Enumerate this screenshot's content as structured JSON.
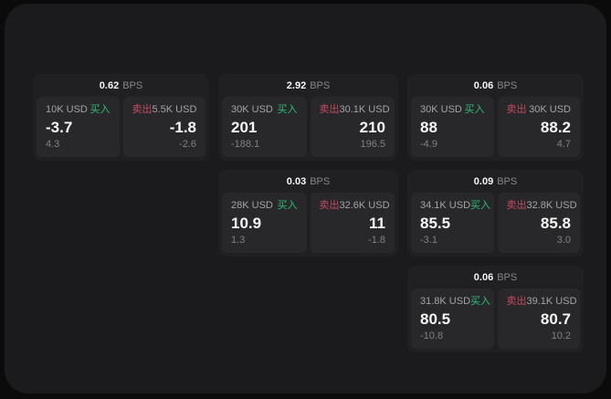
{
  "labels": {
    "buy": "买入",
    "sell": "卖出",
    "bps": "BPS"
  },
  "colors": {
    "page_bg": "#0b0b0c",
    "container_bg": "#1b1b1d",
    "card_bg": "#202022",
    "panel_bg": "#28282b",
    "buy_green": "#2ebd73",
    "sell_red": "#c44a5e",
    "value_text": "#f7f7f7",
    "muted_text": "#86868b"
  },
  "cards": [
    {
      "col": 1,
      "row": 1,
      "bps_value": "0.62",
      "buy": {
        "amount": "10K USD",
        "value": "-3.7",
        "sub": "4.3"
      },
      "sell": {
        "amount": "5.5K USD",
        "value": "-1.8",
        "sub": "-2.6"
      }
    },
    {
      "col": 2,
      "row": 1,
      "bps_value": "2.92",
      "buy": {
        "amount": "30K USD",
        "value": "201",
        "sub": "-188.1"
      },
      "sell": {
        "amount": "30.1K USD",
        "value": "210",
        "sub": "196.5"
      }
    },
    {
      "col": 2,
      "row": 2,
      "bps_value": "0.03",
      "buy": {
        "amount": "28K USD",
        "value": "10.9",
        "sub": "1.3"
      },
      "sell": {
        "amount": "32.6K USD",
        "value": "11",
        "sub": "-1.8"
      }
    },
    {
      "col": 3,
      "row": 1,
      "bps_value": "0.06",
      "buy": {
        "amount": "30K USD",
        "value": "88",
        "sub": "-4.9"
      },
      "sell": {
        "amount": "30K USD",
        "value": "88.2",
        "sub": "4.7"
      }
    },
    {
      "col": 3,
      "row": 2,
      "bps_value": "0.09",
      "buy": {
        "amount": "34.1K USD",
        "value": "85.5",
        "sub": "-3.1"
      },
      "sell": {
        "amount": "32.8K USD",
        "value": "85.8",
        "sub": "3.0"
      }
    },
    {
      "col": 3,
      "row": 3,
      "bps_value": "0.06",
      "buy": {
        "amount": "31.8K USD",
        "value": "80.5",
        "sub": "-10.8"
      },
      "sell": {
        "amount": "39.1K USD",
        "value": "80.7",
        "sub": "10.2"
      }
    }
  ]
}
